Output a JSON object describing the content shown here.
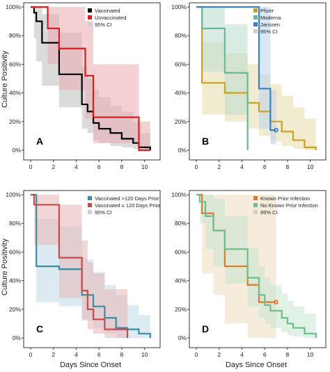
{
  "figure": {
    "ylabel": "Culture Positivity",
    "xlabel_left": "Days Since Onset",
    "xlabel_right": "Days Since Onset"
  },
  "chart_data": [
    {
      "type": "line",
      "subtype": "kaplan-meier step",
      "panel_label": "A",
      "xlabel": "Days Since Onset",
      "ylabel": "Culture Positivity",
      "xlim": [
        0,
        11
      ],
      "ylim": [
        0,
        1
      ],
      "x_ticks": [
        "0",
        "2",
        "4",
        "6",
        "8",
        "10"
      ],
      "y_ticks": [
        "0%",
        "20%",
        "40%",
        "60%",
        "80%",
        "100%"
      ],
      "legend": {
        "position": "top-right",
        "ci_label": "95% CI"
      },
      "series": [
        {
          "name": "Vaccinated",
          "color": "#000000",
          "x": [
            0,
            0.3,
            0.5,
            1,
            2.5,
            4.5,
            5,
            5.5,
            6,
            7,
            8,
            9,
            9.5,
            10.5
          ],
          "y": [
            1.0,
            0.96,
            0.9,
            0.75,
            0.53,
            0.32,
            0.27,
            0.19,
            0.15,
            0.12,
            0.08,
            0.05,
            0.02,
            0.0
          ],
          "ci_upper": [
            1.0,
            1.0,
            1.0,
            0.95,
            0.82,
            0.58,
            0.5,
            0.42,
            0.37,
            0.31,
            0.27,
            0.2,
            0.12,
            0.12
          ],
          "ci_lower": [
            1.0,
            0.78,
            0.62,
            0.45,
            0.3,
            0.15,
            0.12,
            0.07,
            0.05,
            0.03,
            0.02,
            0.01,
            0.0,
            0.0
          ],
          "ci_color": "#bdbdbd"
        },
        {
          "name": "Unvaccinated",
          "color": "#e41a1c",
          "x": [
            0,
            1.5,
            2.5,
            4.8,
            5.5,
            9.5,
            10.5
          ],
          "y": [
            1.0,
            0.85,
            0.71,
            0.52,
            0.23,
            0.0,
            0.0
          ],
          "ci_upper": [
            1.0,
            1.0,
            1.0,
            0.9,
            0.6,
            0.2,
            0.2
          ],
          "ci_lower": [
            1.0,
            0.6,
            0.42,
            0.22,
            0.05,
            0.0,
            0.0
          ],
          "ci_color": "#e8aab0"
        }
      ]
    },
    {
      "type": "line",
      "subtype": "kaplan-meier step",
      "panel_label": "B",
      "xlabel": "Days Since Onset",
      "ylabel": "Culture Positivity",
      "xlim": [
        0,
        11
      ],
      "ylim": [
        0,
        1
      ],
      "x_ticks": [
        "0",
        "2",
        "4",
        "6",
        "8",
        "10"
      ],
      "y_ticks": [
        "0%",
        "20%",
        "40%",
        "60%",
        "80%",
        "100%"
      ],
      "legend": {
        "position": "top-right",
        "ci_label": "95% CI"
      },
      "series": [
        {
          "name": "Pfizer",
          "color": "#c9a227",
          "x": [
            0,
            0.5,
            2.5,
            4.5,
            5.5,
            6.5,
            7.5,
            8.5,
            9.5,
            10.5
          ],
          "y": [
            1.0,
            0.47,
            0.4,
            0.33,
            0.27,
            0.2,
            0.13,
            0.07,
            0.02,
            0.0
          ],
          "ci_upper": [
            1.0,
            0.75,
            0.68,
            0.6,
            0.53,
            0.46,
            0.38,
            0.3,
            0.22,
            0.22
          ],
          "ci_lower": [
            1.0,
            0.25,
            0.2,
            0.15,
            0.1,
            0.06,
            0.03,
            0.01,
            0.0,
            0.0
          ],
          "ci_color": "#e6dcaa"
        },
        {
          "name": "Moderna",
          "color": "#66b89a",
          "x": [
            0,
            0.5,
            2.5,
            4.5,
            4.5
          ],
          "y": [
            1.0,
            0.85,
            0.54,
            0.42,
            0.0
          ],
          "ci_upper": [
            1.0,
            1.0,
            0.88,
            0.8,
            0.8
          ],
          "ci_lower": [
            1.0,
            0.55,
            0.25,
            0.15,
            0.0
          ],
          "ci_color": "#b9dccd"
        },
        {
          "name": "Janssen",
          "color": "#3c7fc0",
          "x": [
            0,
            5.5,
            6.5,
            7.0
          ],
          "y": [
            1.0,
            0.43,
            0.14,
            0.14
          ],
          "censored_end": true,
          "ci_upper": [
            1.0,
            1.0,
            0.42,
            0.42
          ],
          "ci_lower": [
            1.0,
            0.15,
            0.04,
            0.04
          ],
          "ci_color": "#bcd3ea"
        }
      ]
    },
    {
      "type": "line",
      "subtype": "kaplan-meier step",
      "panel_label": "C",
      "xlabel": "Days Since Onset",
      "ylabel": "Culture Positivity",
      "xlim": [
        0,
        11
      ],
      "ylim": [
        0,
        1
      ],
      "x_ticks": [
        "0",
        "2",
        "4",
        "6",
        "8",
        "10"
      ],
      "y_ticks": [
        "0%",
        "20%",
        "40%",
        "60%",
        "80%",
        "100%"
      ],
      "legend": {
        "position": "top-right",
        "ci_label": "95% CI"
      },
      "series": [
        {
          "name": "Vaccinated >120 Days Prior",
          "color": "#3d8aa5",
          "x": [
            0,
            0.5,
            2.5,
            4.5,
            5.5,
            6.5,
            7.5,
            8.5,
            9.5,
            10.5
          ],
          "y": [
            1.0,
            0.5,
            0.48,
            0.3,
            0.22,
            0.14,
            0.07,
            0.06,
            0.03,
            0.0
          ],
          "ci_upper": [
            1.0,
            0.83,
            0.78,
            0.55,
            0.46,
            0.37,
            0.3,
            0.23,
            0.16,
            0.16
          ],
          "ci_lower": [
            1.0,
            0.25,
            0.22,
            0.12,
            0.07,
            0.03,
            0.0,
            0.0,
            0.0,
            0.0
          ],
          "ci_color": "#bfdbe6"
        },
        {
          "name": "Vaccinated ≤ 120 Days Prior",
          "color": "#c8494a",
          "x": [
            0,
            0.3,
            2.5,
            4.5,
            5.0,
            5.5,
            6.5,
            8.5
          ],
          "y": [
            1.0,
            0.93,
            0.56,
            0.33,
            0.2,
            0.13,
            0.06,
            0.0
          ],
          "ci_upper": [
            1.0,
            1.0,
            0.93,
            0.68,
            0.53,
            0.45,
            0.34,
            0.34
          ],
          "ci_lower": [
            1.0,
            0.65,
            0.28,
            0.13,
            0.06,
            0.03,
            0.0,
            0.0
          ],
          "ci_color": "#e8b5b5"
        }
      ]
    },
    {
      "type": "line",
      "subtype": "kaplan-meier step",
      "panel_label": "D",
      "xlabel": "Days Since Onset",
      "ylabel": "Culture Positivity",
      "xlim": [
        0,
        11
      ],
      "ylim": [
        0,
        1
      ],
      "x_ticks": [
        "0",
        "2",
        "4",
        "6",
        "8",
        "10"
      ],
      "y_ticks": [
        "0%",
        "20%",
        "40%",
        "60%",
        "80%",
        "100%"
      ],
      "legend": {
        "position": "top-right",
        "ci_label": "95% CI"
      },
      "series": [
        {
          "name": "Known Prior Infection",
          "color": "#d87c2e",
          "x": [
            0,
            0.5,
            1.5,
            2.5,
            4.5,
            5.5,
            7.0
          ],
          "y": [
            1.0,
            0.87,
            0.75,
            0.5,
            0.37,
            0.25,
            0.25
          ],
          "censored_end": true,
          "ci_upper": [
            1.0,
            1.0,
            1.0,
            1.0,
            1.0,
            1.0,
            1.0
          ],
          "ci_lower": [
            1.0,
            0.45,
            0.3,
            0.1,
            0.0,
            0.0,
            0.0
          ],
          "ci_color": "#ecdcc0"
        },
        {
          "name": "No Known Prior Infection",
          "color": "#6cbf8a",
          "x": [
            0,
            0.3,
            0.8,
            1.5,
            2.5,
            4.5,
            5.5,
            6.0,
            6.5,
            7.5,
            8.0,
            8.5,
            9.5,
            10.5
          ],
          "y": [
            1.0,
            0.95,
            0.85,
            0.75,
            0.62,
            0.42,
            0.3,
            0.23,
            0.19,
            0.14,
            0.1,
            0.07,
            0.03,
            0.0
          ],
          "ci_upper": [
            1.0,
            1.0,
            1.0,
            0.97,
            0.85,
            0.63,
            0.5,
            0.42,
            0.37,
            0.31,
            0.26,
            0.22,
            0.17,
            0.17
          ],
          "ci_lower": [
            1.0,
            0.8,
            0.62,
            0.5,
            0.38,
            0.22,
            0.14,
            0.1,
            0.07,
            0.04,
            0.02,
            0.01,
            0.0,
            0.0
          ],
          "ci_color": "#c7e6cf"
        }
      ]
    }
  ]
}
